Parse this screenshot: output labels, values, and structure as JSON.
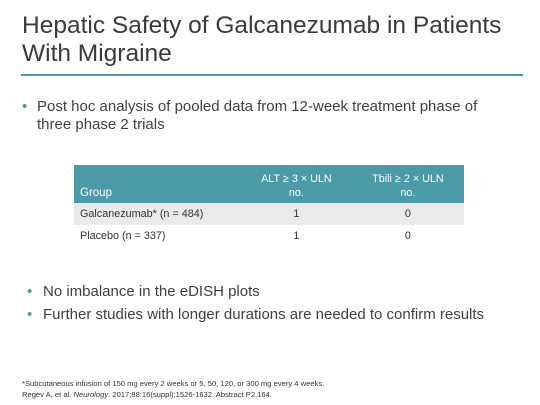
{
  "slide": {
    "title": "Hepatic Safety of Galcanezumab in Patients With Migraine",
    "bullets_top": [
      "Post hoc analysis of pooled data from 12-week treatment phase of three phase 2 trials"
    ],
    "bullets_bottom": [
      "No imbalance in the eDISH plots",
      "Further studies with longer durations are needed to confirm results"
    ],
    "bullet_glyph": "•",
    "accent_color": "#4b9aa8"
  },
  "table": {
    "headers": {
      "group": "Group",
      "alt_line1": "ALT ≥ 3 × ULN",
      "alt_line2": "no.",
      "tbili_line1": "Tbili ≥ 2 × ULN",
      "tbili_line2": "no."
    },
    "rows": [
      {
        "group": "Galcanezumab* (n = 484)",
        "alt": "1",
        "tbili": "0"
      },
      {
        "group": "Placebo (n = 337)",
        "alt": "1",
        "tbili": "0"
      }
    ]
  },
  "footnotes": {
    "line1": "*Subcutaneous infusion of 150 mg every 2 weeks or 5, 50, 120, or 300 mg every 4 weeks.",
    "line2_prefix": "Regev A, et al. ",
    "line2_journal": "Neurology",
    "line2_suffix": ". 2017;88:16(suppl);1526-1632. Abstract P2.164."
  }
}
